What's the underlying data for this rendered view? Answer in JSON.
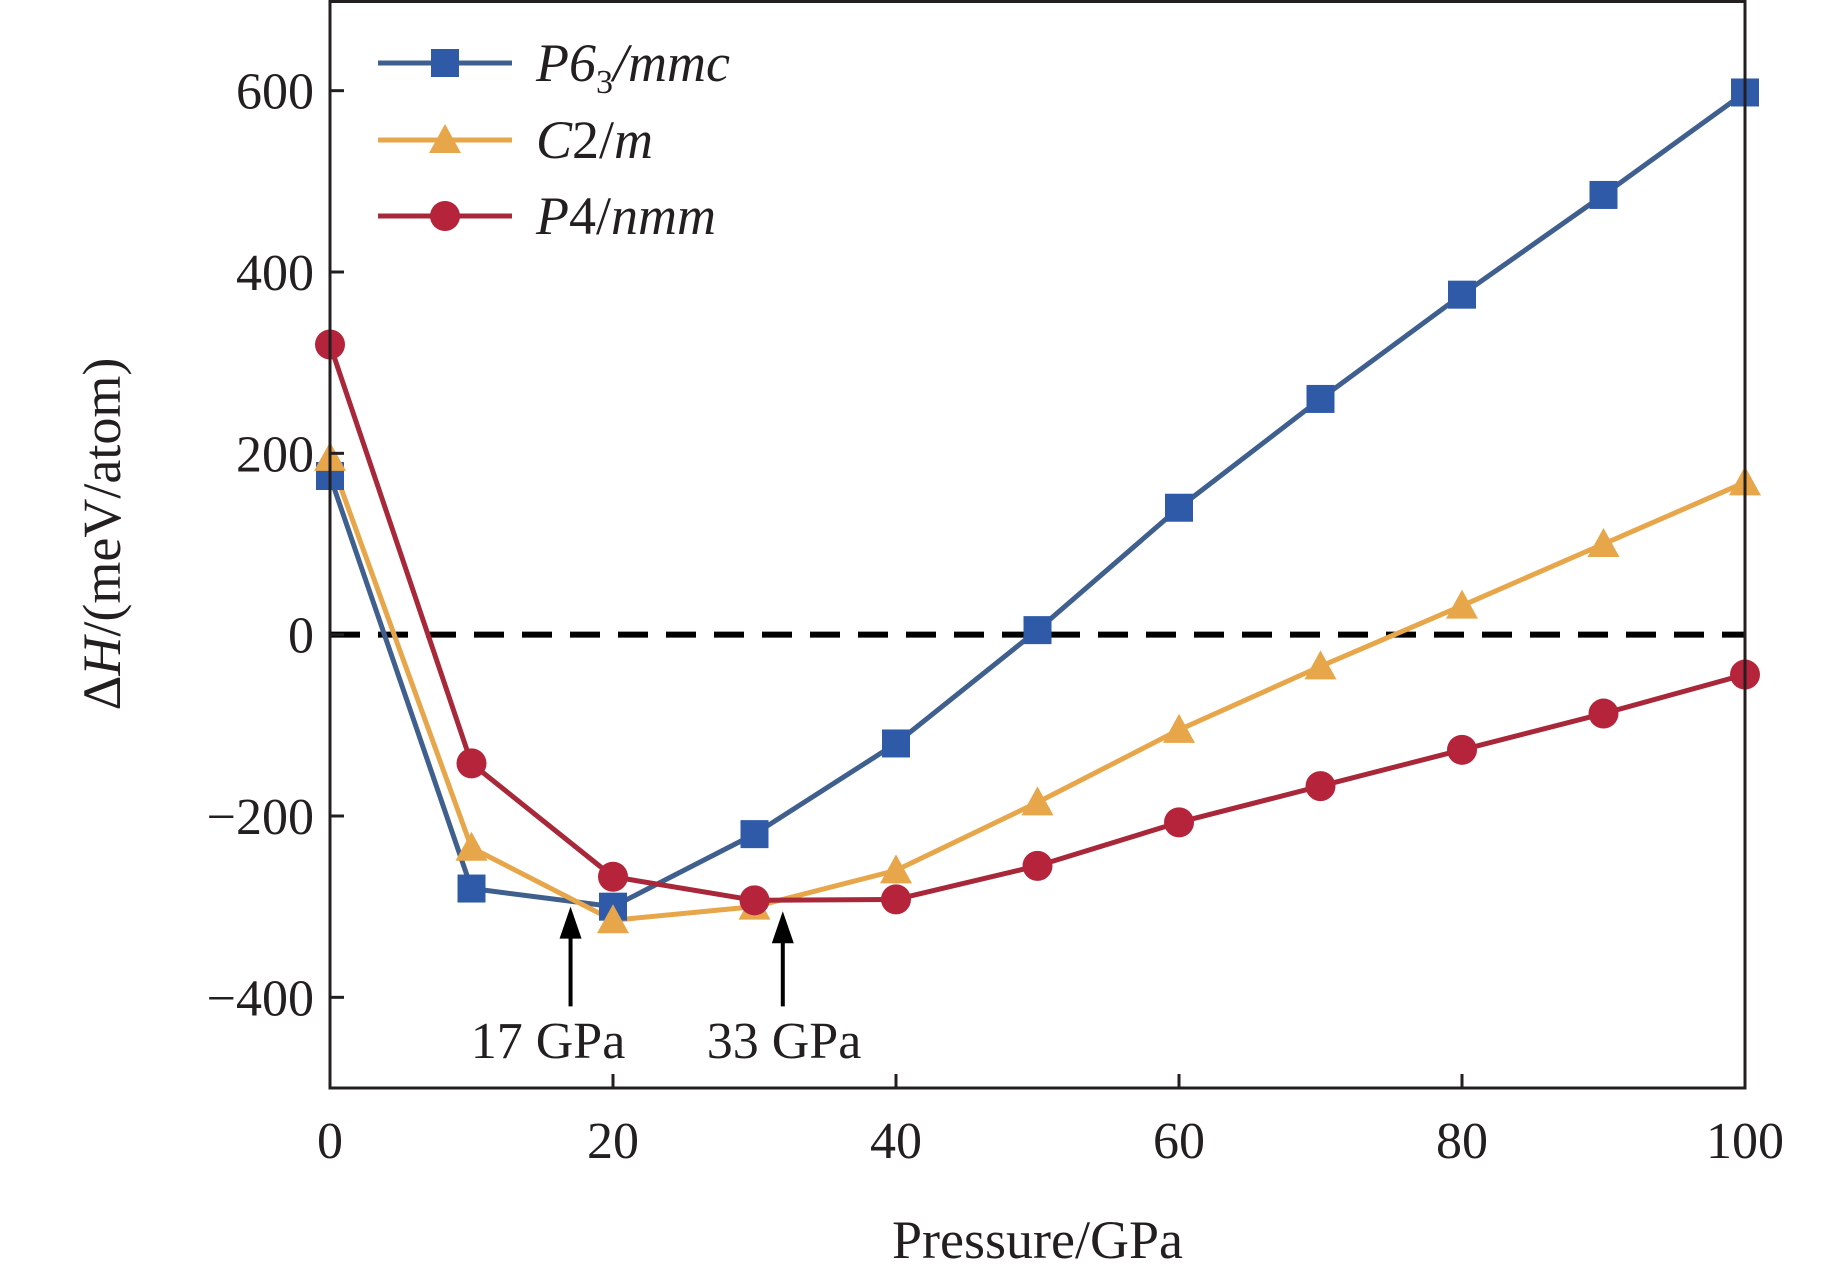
{
  "chart_data": {
    "type": "line",
    "xlabel": "Pressure/GPa",
    "ylabel_italic": "H",
    "ylabel_prefix": "Δ",
    "ylabel_suffix": "/(meV/atom)",
    "xlim": [
      0,
      100
    ],
    "ylim": [
      -500,
      700
    ],
    "x_ticks": [
      0,
      20,
      40,
      60,
      80,
      100
    ],
    "y_ticks": [
      -400,
      -200,
      0,
      200,
      400,
      600
    ],
    "y_tick_labels": [
      "−400",
      "−200",
      "0",
      "200",
      "400",
      "600"
    ],
    "grid": false,
    "legend_position": "top-left",
    "reference_line": {
      "y": 0,
      "style": "dashed",
      "color": "#000000"
    },
    "x": [
      0,
      10,
      20,
      30,
      40,
      50,
      60,
      70,
      80,
      90,
      100
    ],
    "series": [
      {
        "name_italic": "P6",
        "name_sub": "3",
        "name_suffix": "/mmc",
        "marker": "square",
        "color": "#2e5aa8",
        "line_color": "#3f5f8e",
        "values": [
          175,
          -280,
          -300,
          -220,
          -120,
          5,
          140,
          260,
          375,
          485,
          598
        ]
      },
      {
        "name_italic": "C",
        "name_plain": "2/",
        "name_suffix": "m",
        "marker": "triangle",
        "color": "#e8a64a",
        "line_color": "#e8a64a",
        "values": [
          195,
          -235,
          -315,
          -300,
          -260,
          -185,
          -105,
          -35,
          32,
          100,
          168
        ]
      },
      {
        "name_italic": "P",
        "name_plain": "4/",
        "name_suffix": "nmm",
        "marker": "circle",
        "color": "#b5243a",
        "line_color": "#a8283a",
        "values": [
          320,
          -142,
          -267,
          -293,
          -292,
          -255,
          -207,
          -167,
          -127,
          -87,
          -44
        ]
      }
    ],
    "annotations": [
      {
        "text": "17 GPa",
        "x": 17,
        "arrow_from_y": -410,
        "arrow_to_y": -300
      },
      {
        "text": "33 GPa",
        "x": 32,
        "arrow_from_y": -410,
        "arrow_to_y": -305
      }
    ]
  }
}
